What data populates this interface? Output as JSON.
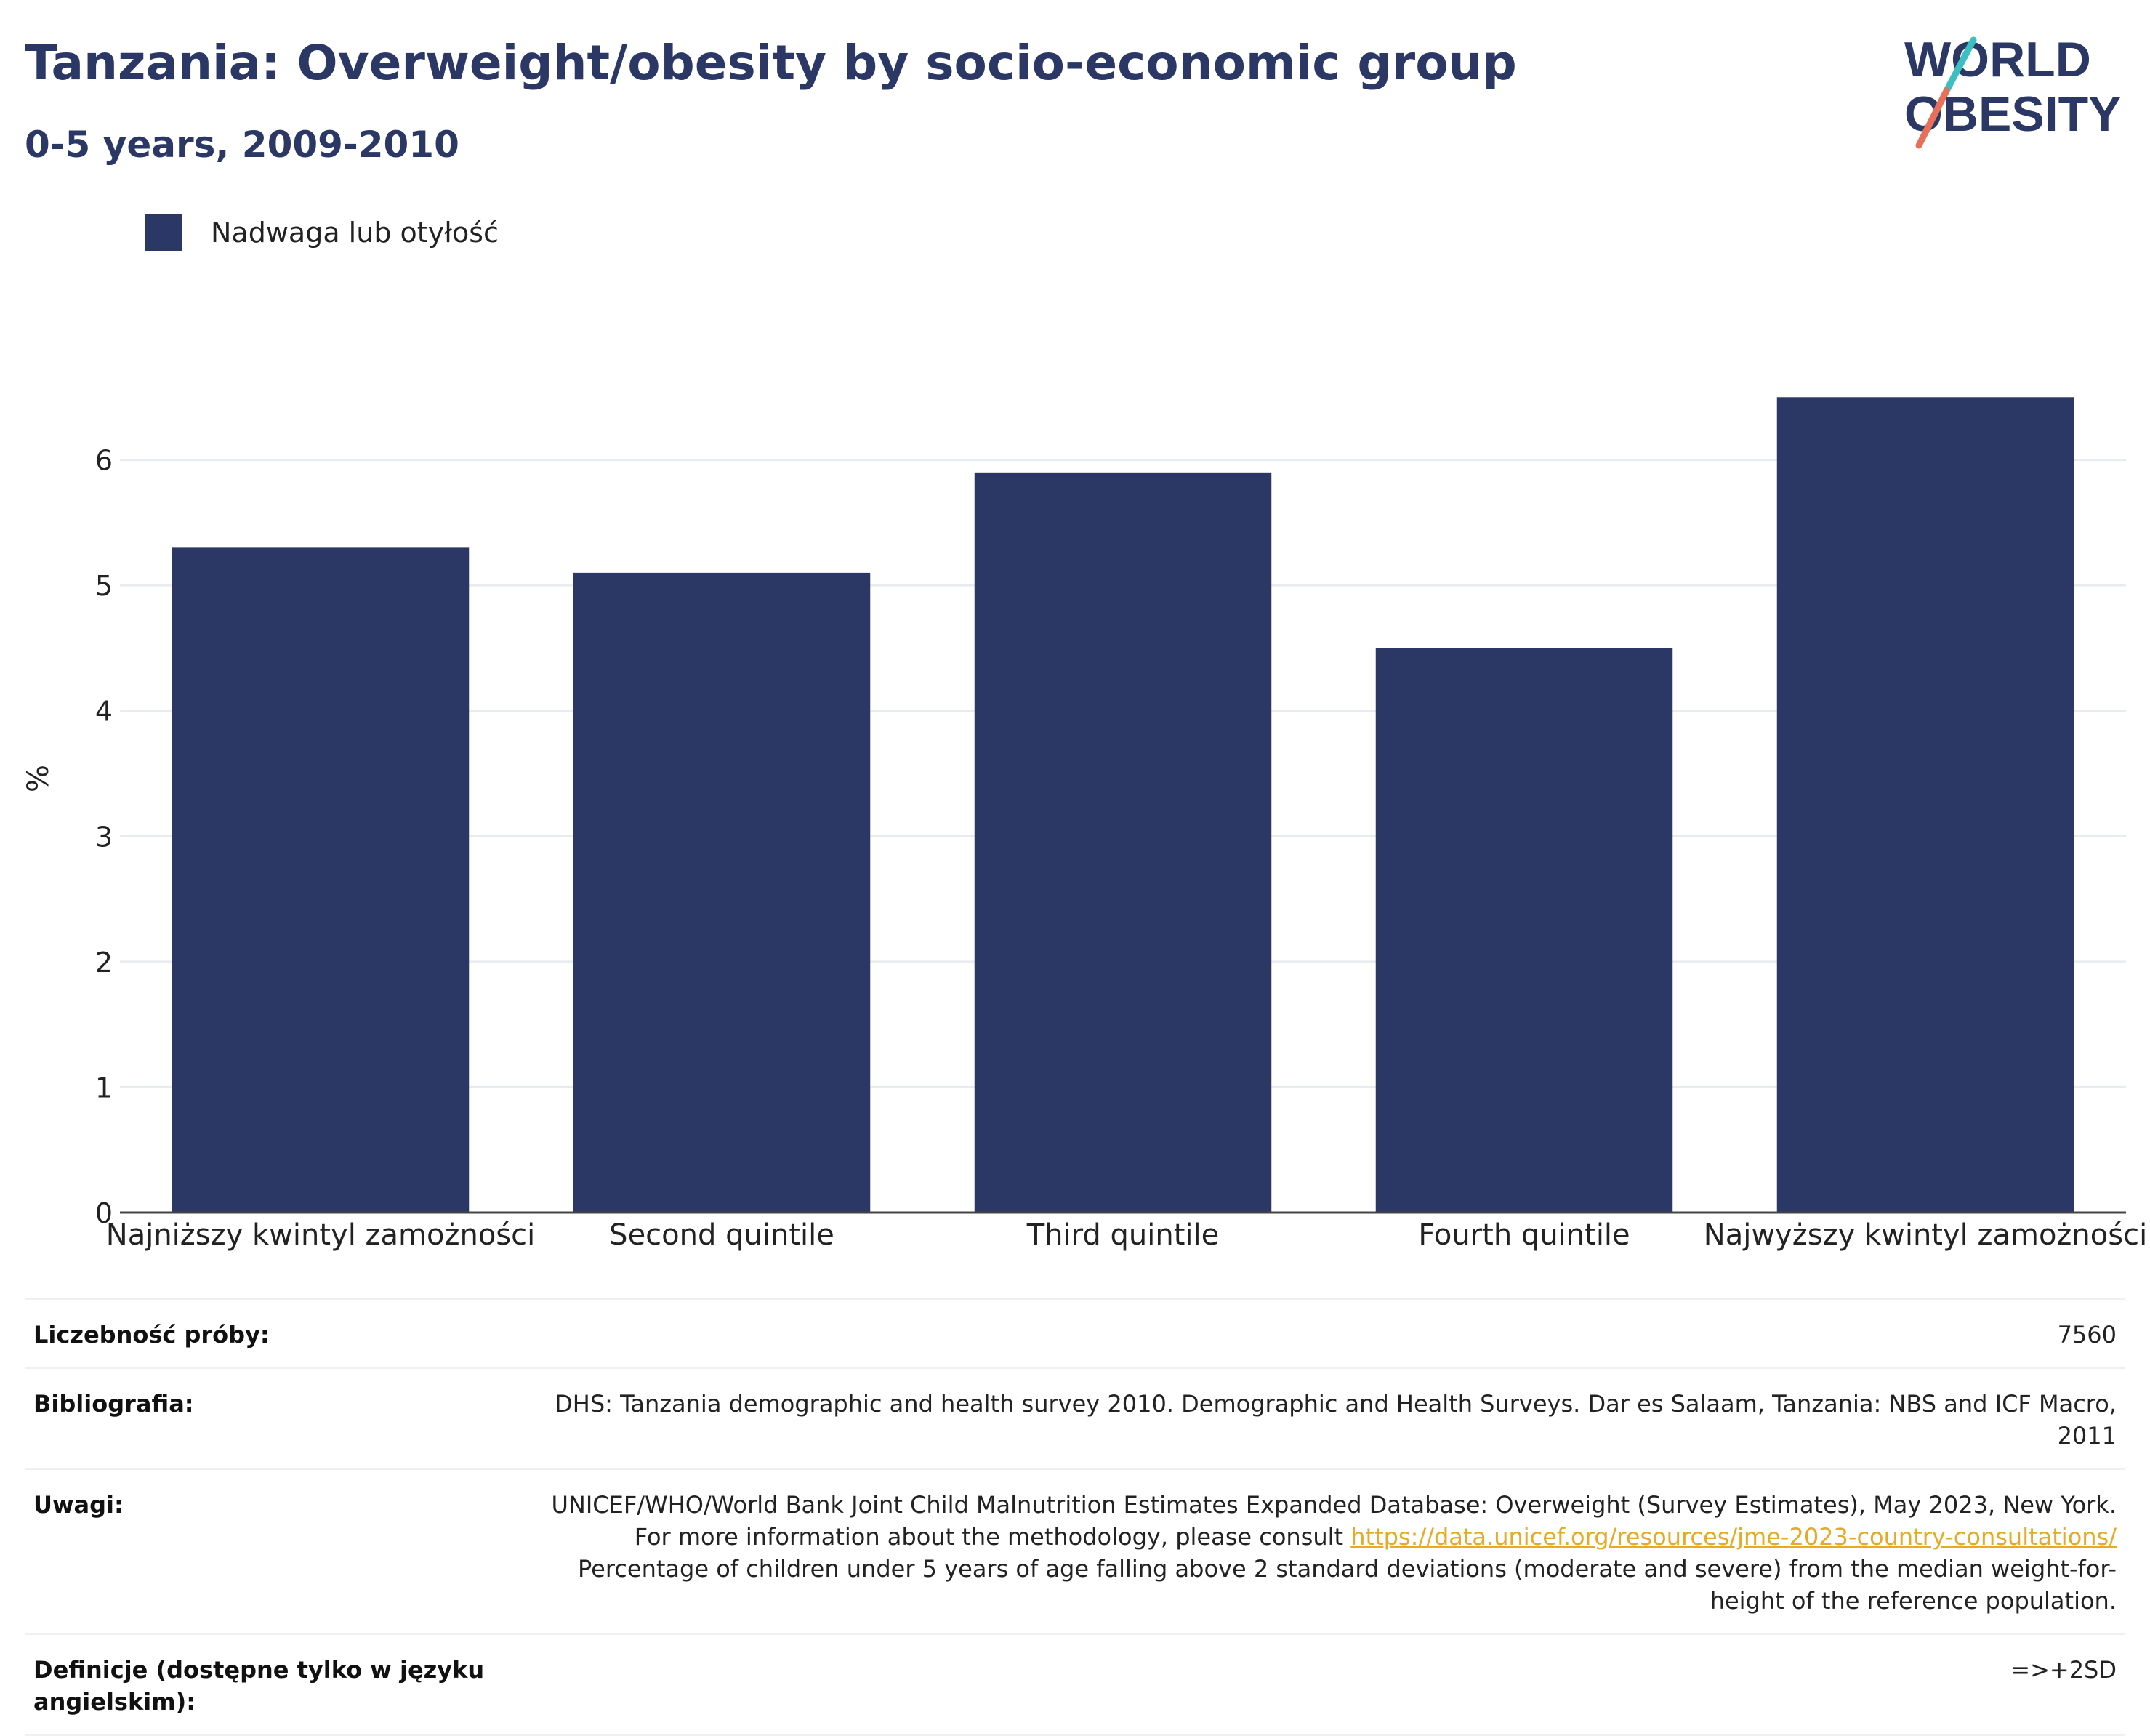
{
  "header": {
    "title": "Tanzania: Overweight/obesity by socio-economic group",
    "subtitle": "0-5 years, 2009-2010"
  },
  "logo": {
    "line1": "WORLD",
    "line2": "OBESITY",
    "colors": {
      "text": "#2b3765",
      "slash_top": "#3bbfc1",
      "slash_bottom": "#e8705a"
    }
  },
  "colors": {
    "bar": "#2b3765",
    "grid": "#e9ecef",
    "axis": "#444444"
  },
  "chart_data": {
    "type": "bar",
    "categories": [
      "Najniższy kwintyl zamożności",
      "Second quintile",
      "Third quintile",
      "Fourth quintile",
      "Najwyższy kwintyl zamożności"
    ],
    "series": [
      {
        "name": "Nadwaga lub otyłość",
        "values": [
          5.3,
          5.1,
          5.9,
          4.5,
          6.5
        ]
      }
    ],
    "ylabel": "%",
    "ylim": [
      0,
      7
    ],
    "yticks": [
      0,
      1,
      2,
      3,
      4,
      5,
      6
    ],
    "grid": true,
    "legend_position": "top-left"
  },
  "info": {
    "rows": [
      {
        "key": "Liczebność próby:",
        "value": "7560"
      },
      {
        "key": "Bibliografia:",
        "value": "DHS: Tanzania demographic and health survey 2010. Demographic and Health Surveys. Dar es Salaam, Tanzania: NBS and ICF Macro, 2011"
      },
      {
        "key": "Uwagi:",
        "value": "UNICEF/WHO/World Bank Joint Child Malnutrition Estimates Expanded Database: Overweight (Survey Estimates), May 2023, New York. For more information about the methodology, please consult",
        "link": "https://data.unicef.org/resources/jme-2023-country-consultations/",
        "value_after": "Percentage of children under 5 years of age falling above 2 standard deviations (moderate and severe) from the median weight-for-height of the reference population."
      },
      {
        "key": "Definicje (dostępne tylko w języku angielskim):",
        "value": "=>+2SD"
      }
    ]
  }
}
